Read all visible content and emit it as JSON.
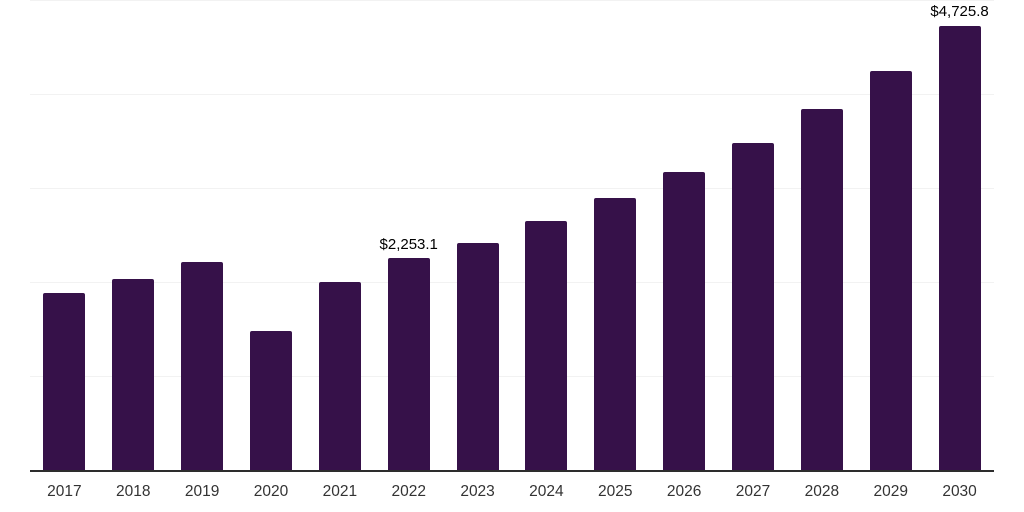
{
  "chart_data": {
    "type": "bar",
    "title": "",
    "xlabel": "",
    "ylabel": "",
    "categories": [
      "2017",
      "2018",
      "2019",
      "2020",
      "2021",
      "2022",
      "2023",
      "2024",
      "2025",
      "2026",
      "2027",
      "2028",
      "2029",
      "2030"
    ],
    "values": [
      1885,
      2030,
      2215,
      1475,
      2000,
      2253.1,
      2420,
      2650,
      2890,
      3170,
      3475,
      3840,
      4250,
      4725.8
    ],
    "labeled_points": [
      {
        "category": "2022",
        "label": "$2,253.1"
      },
      {
        "category": "2030",
        "label": "$4,725.8"
      }
    ],
    "ylim": [
      0,
      5000
    ],
    "gridline_step": 1000,
    "grid": true,
    "legend": false,
    "colors": {
      "bar": "#361149",
      "axis_line": "#2d2d2d",
      "gridline": "#f2f2f2",
      "tick_label": "#333333",
      "value_label": "#000000",
      "background": "#ffffff"
    }
  }
}
